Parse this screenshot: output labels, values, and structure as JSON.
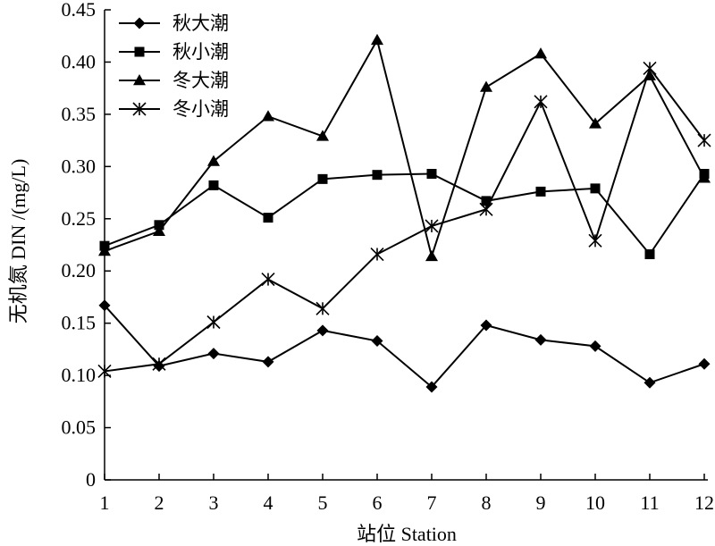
{
  "chart_data": {
    "type": "line",
    "xlabel": "站位 Station",
    "ylabel": "无机氮 DIN /(mg/L)",
    "x": [
      1,
      2,
      3,
      4,
      5,
      6,
      7,
      8,
      9,
      10,
      11,
      12
    ],
    "xlim": [
      1,
      12
    ],
    "ylim": [
      0,
      0.45
    ],
    "yticks": [
      "0",
      "0.05",
      "0.10",
      "0.15",
      "0.20",
      "0.25",
      "0.30",
      "0.35",
      "0.40",
      "0.45"
    ],
    "xticks": [
      "1",
      "2",
      "3",
      "4",
      "5",
      "6",
      "7",
      "8",
      "9",
      "10",
      "11",
      "12"
    ],
    "legend_position": "top-left",
    "series": [
      {
        "name": "秋大潮",
        "marker": "diamond",
        "values": [
          0.167,
          0.109,
          0.121,
          0.113,
          0.143,
          0.133,
          0.089,
          0.148,
          0.134,
          0.128,
          0.093,
          0.111
        ]
      },
      {
        "name": "秋小潮",
        "marker": "square",
        "values": [
          0.224,
          0.244,
          0.282,
          0.251,
          0.288,
          0.292,
          0.293,
          0.267,
          0.276,
          0.279,
          0.216,
          0.293
        ]
      },
      {
        "name": "冬大潮",
        "marker": "triangle",
        "values": [
          0.219,
          0.238,
          0.305,
          0.348,
          0.329,
          0.421,
          0.214,
          0.376,
          0.408,
          0.341,
          0.387,
          0.289
        ]
      },
      {
        "name": "冬小潮",
        "marker": "star",
        "values": [
          0.104,
          0.111,
          0.151,
          0.192,
          0.164,
          0.216,
          0.243,
          0.259,
          0.362,
          0.229,
          0.394,
          0.325
        ]
      }
    ]
  }
}
